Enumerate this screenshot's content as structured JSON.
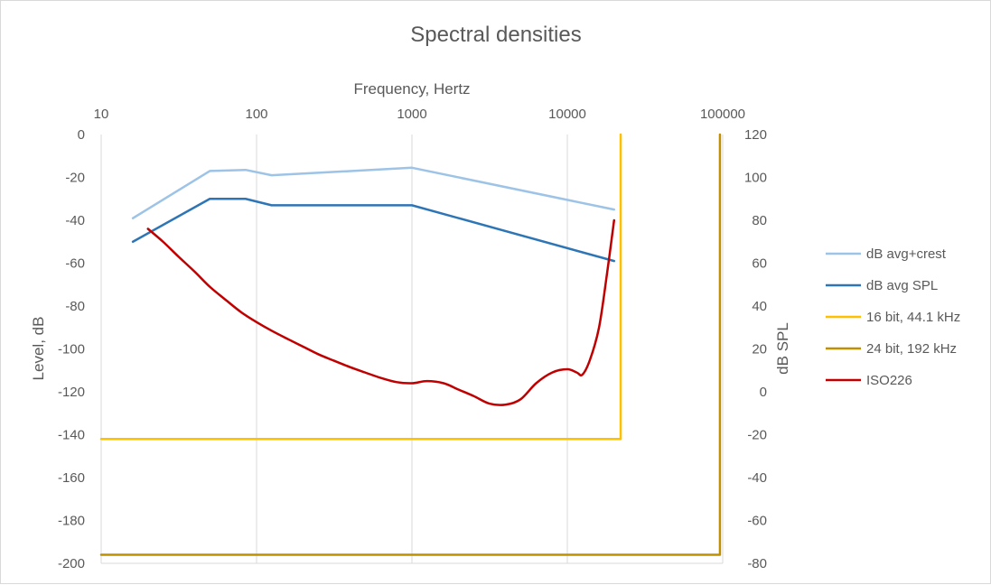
{
  "chart_data": {
    "type": "line",
    "title": "Spectral densities",
    "x_axis": {
      "label": "Frequency, Hertz",
      "position": "top",
      "scale": "log",
      "range": [
        10,
        100000
      ],
      "tick_labels": [
        "10",
        "100",
        "1000",
        "10000",
        "100000"
      ]
    },
    "y_axis_left": {
      "label": "Level, dB",
      "range": [
        -200,
        0
      ],
      "tick_labels": [
        "0",
        "-20",
        "-40",
        "-60",
        "-80",
        "-100",
        "-120",
        "-140",
        "-160",
        "-180",
        "-200"
      ]
    },
    "y_axis_right": {
      "label": "dB SPL",
      "range": [
        -80,
        120
      ],
      "tick_labels": [
        "120",
        "100",
        "80",
        "60",
        "40",
        "20",
        "0",
        "-20",
        "-40",
        "-60",
        "-80"
      ]
    },
    "grid": "vertical",
    "legend_position": "right",
    "series": [
      {
        "name": "dB avg+crest",
        "axis": "left",
        "color": "#9dc3e6",
        "x": [
          16,
          50,
          85,
          125,
          1000,
          20000
        ],
        "y": [
          -39,
          -17,
          -16.5,
          -19,
          -15.5,
          -35
        ]
      },
      {
        "name": "dB avg SPL",
        "axis": "left",
        "color": "#2e75b6",
        "x": [
          16,
          50,
          85,
          125,
          1000,
          20000
        ],
        "y": [
          -50,
          -30,
          -30,
          -33,
          -33,
          -59
        ]
      },
      {
        "name": "16 bit, 44.1 kHz",
        "axis": "left",
        "color": "#ffc000",
        "x": [
          10,
          22050,
          22050
        ],
        "y": [
          -142,
          -142,
          0
        ]
      },
      {
        "name": "24 bit, 192 kHz",
        "axis": "left",
        "color": "#bf9000",
        "x": [
          10,
          96000,
          96000
        ],
        "y": [
          -196,
          -196,
          0
        ]
      },
      {
        "name": "ISO226",
        "axis": "right",
        "color": "#c00000",
        "x": [
          20,
          25,
          31.5,
          40,
          50,
          63,
          80,
          100,
          125,
          160,
          200,
          250,
          315,
          400,
          500,
          630,
          800,
          1000,
          1250,
          1600,
          2000,
          2500,
          3150,
          4000,
          5000,
          6300,
          8000,
          10000,
          11500,
          12500,
          14000,
          16000,
          18000,
          20000
        ],
        "y": [
          76,
          70,
          63,
          56,
          49,
          43,
          37,
          32.5,
          28.5,
          24.5,
          21,
          17.5,
          14.5,
          11.5,
          9,
          6.5,
          4.5,
          4,
          5,
          4,
          1,
          -2,
          -5.5,
          -6,
          -3.5,
          4,
          9,
          10.5,
          9,
          8,
          15,
          30,
          55,
          80
        ]
      }
    ]
  }
}
